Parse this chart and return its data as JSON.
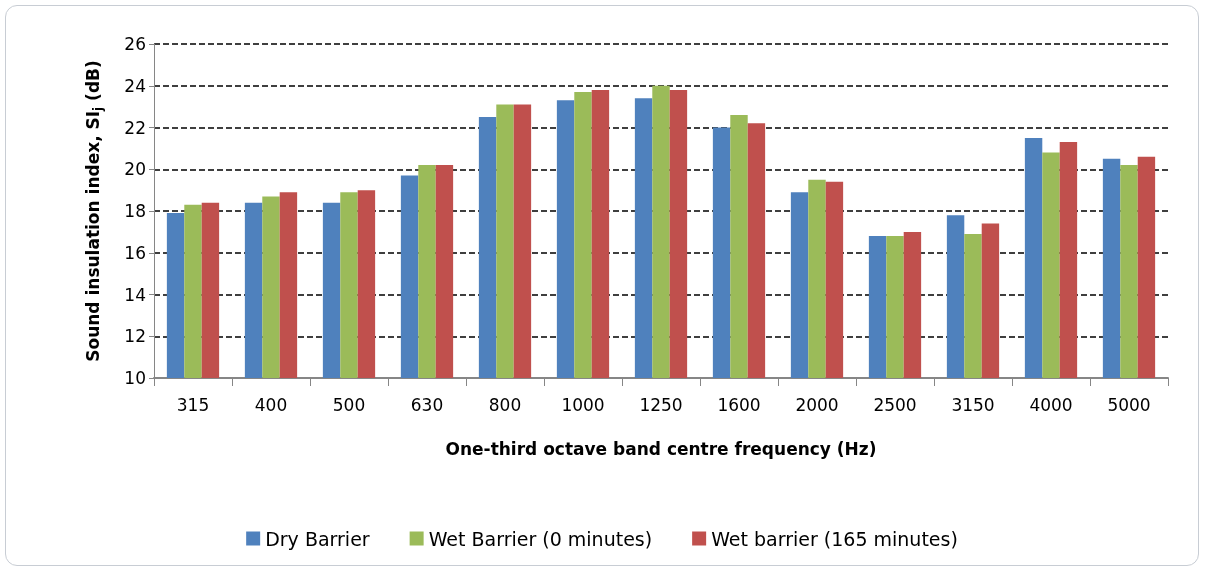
{
  "chart_data": {
    "type": "bar",
    "xlabel": "One-third octave band centre frequency (Hz)",
    "ylabel": "Sound insulation index, SI$_{j}$ (dB)",
    "categories": [
      "315",
      "400",
      "500",
      "630",
      "800",
      "1000",
      "1250",
      "1600",
      "2000",
      "2500",
      "3150",
      "4000",
      "5000"
    ],
    "series": [
      {
        "name": "Dry Barrier",
        "color": "#4f81bd",
        "values": [
          17.9,
          18.4,
          18.4,
          19.7,
          22.5,
          23.3,
          23.4,
          22.0,
          18.9,
          16.8,
          17.8,
          21.5,
          20.5
        ]
      },
      {
        "name": "Wet Barrier (0 minutes)",
        "color": "#9bbb59",
        "values": [
          18.3,
          18.7,
          18.9,
          20.2,
          23.1,
          23.7,
          24.0,
          22.6,
          19.5,
          16.8,
          16.9,
          20.8,
          20.2
        ]
      },
      {
        "name": "Wet barrier (165 minutes)",
        "color": "#c0504d",
        "values": [
          18.4,
          18.9,
          19.0,
          20.2,
          23.1,
          23.8,
          23.8,
          22.2,
          19.4,
          17.0,
          17.4,
          21.3,
          20.6
        ]
      }
    ],
    "ylim": [
      10,
      26
    ],
    "yticks": [
      10,
      12,
      14,
      16,
      18,
      20,
      22,
      24,
      26
    ],
    "grid": "y",
    "legend": "bottom",
    "line_style": "dashed"
  }
}
